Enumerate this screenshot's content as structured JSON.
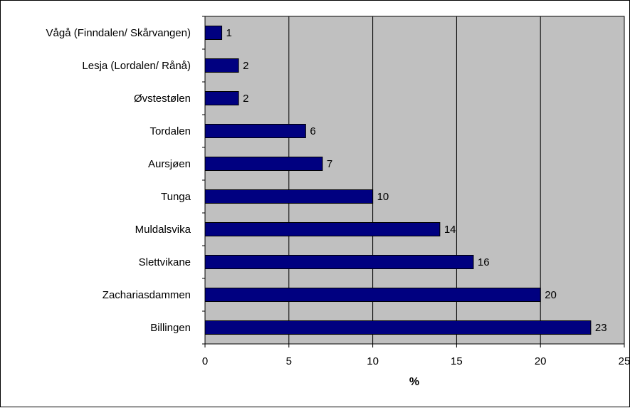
{
  "chart_data": {
    "type": "bar",
    "orientation": "horizontal",
    "categories": [
      "Vågå (Finndalen/ Skårvangen)",
      "Lesja (Lordalen/ Rånå)",
      "Øvstestølen",
      "Tordalen",
      "Aursjøen",
      "Tunga",
      "Muldalsvika",
      "Slettvikane",
      "Zachariasdammen",
      "Billingen"
    ],
    "values": [
      1,
      2,
      2,
      6,
      7,
      10,
      14,
      16,
      20,
      23
    ],
    "xlabel": "%",
    "ylabel": "",
    "title": "",
    "xlim": [
      0,
      25
    ],
    "xticks": [
      0,
      5,
      10,
      15,
      20,
      25
    ],
    "grid": "vertical",
    "legend": "none",
    "colors": {
      "bar": "#000080",
      "plot_background": "#c0c0c0",
      "gridline": "#000000"
    }
  }
}
